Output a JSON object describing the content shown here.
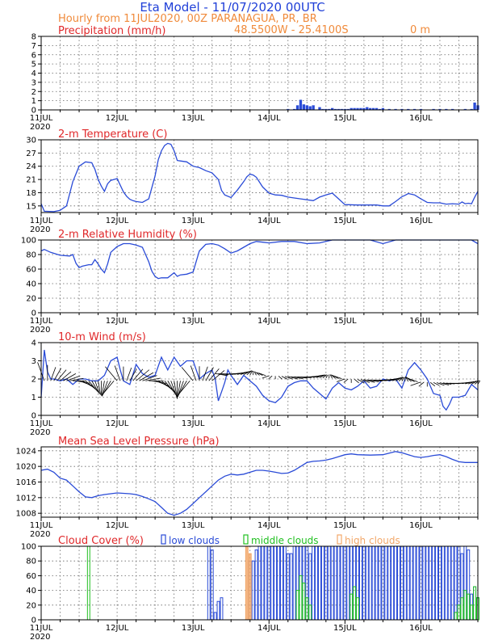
{
  "header": {
    "title": "Eta Model - 11/07/2020 00UTC",
    "subtitle": "Hourly from 11JUL2020, 00Z  PARANAGUA, PR, BR",
    "coords": "48.5500W - 25.4100S",
    "elevation": "0  m"
  },
  "colors": {
    "title_blue": "#1f3fd8",
    "header_orange": "#f08a3a",
    "panel_title_red": "#e0282a",
    "line_blue": "#2a4bd7",
    "green": "#22c022",
    "orange": "#f2a86a"
  },
  "x_axis": {
    "day_labels": [
      "11JUL",
      "12JUL",
      "13JUL",
      "14JUL",
      "15JUL",
      "16JUL"
    ],
    "year_label": "2020"
  },
  "chart_data": [
    {
      "type": "bar",
      "title": "Precipitation (mm/h)",
      "ylim": [
        0,
        8
      ],
      "yticks": [
        0,
        1,
        2,
        3,
        4,
        5,
        6,
        7,
        8
      ],
      "x_unit": "hours since 11JUL2020 00Z",
      "x": [
        78,
        80,
        81,
        82,
        83,
        84,
        85,
        86,
        88,
        89,
        90,
        91,
        92,
        93,
        94,
        95,
        96,
        97,
        98,
        99,
        100,
        101,
        102,
        103,
        104,
        105,
        106,
        107,
        108,
        110,
        112,
        114,
        116,
        118,
        120,
        124,
        126,
        128,
        130,
        134,
        136,
        137,
        138
      ],
      "values": [
        0.1,
        0.1,
        0.5,
        1.1,
        0.6,
        0.5,
        0.4,
        0.5,
        0.3,
        0.1,
        0.1,
        0.1,
        0.2,
        0.1,
        0.1,
        0.1,
        0.1,
        0.1,
        0.2,
        0.2,
        0.2,
        0.2,
        0.2,
        0.3,
        0.2,
        0.2,
        0.2,
        0.1,
        0.2,
        0.1,
        0.1,
        0.1,
        0.1,
        0.1,
        0.1,
        0.1,
        0.1,
        0.1,
        0.1,
        0.1,
        0.1,
        0.8,
        0.5
      ]
    },
    {
      "type": "line",
      "title": "2-m Temperature (C)",
      "ylim": [
        13.5,
        30
      ],
      "yticks": [
        15,
        18,
        21,
        24,
        27,
        30
      ],
      "x_unit": "hours since 11JUL2020 00Z",
      "x": [
        0,
        1,
        4,
        6,
        8,
        10,
        12,
        14,
        16,
        17,
        18,
        19,
        20,
        21,
        22,
        24,
        26,
        27,
        28,
        29,
        30,
        32,
        34,
        36,
        37,
        38,
        39,
        40,
        41,
        42,
        43,
        44,
        46,
        48,
        50,
        52,
        54,
        56,
        57,
        58,
        60,
        62,
        64,
        65,
        66,
        67,
        68,
        70,
        72,
        74,
        76,
        78,
        80,
        82,
        84,
        86,
        88,
        90,
        92,
        96,
        100,
        104,
        106,
        108,
        110,
        112,
        114,
        115,
        116,
        118,
        120,
        122,
        124,
        126,
        128,
        130,
        132,
        133,
        134,
        135,
        136,
        137,
        138
      ],
      "values": [
        15.5,
        13.8,
        13.7,
        14.0,
        15.0,
        20.5,
        24.0,
        25.0,
        24.8,
        23.3,
        21.0,
        19.5,
        18.3,
        20.0,
        20.8,
        21.2,
        18.2,
        17.2,
        16.5,
        16.2,
        16.0,
        15.8,
        16.6,
        21.8,
        25.5,
        27.5,
        28.7,
        29.2,
        29.0,
        27.5,
        25.3,
        25.2,
        25.0,
        24.0,
        23.7,
        23.0,
        22.5,
        21.0,
        18.5,
        17.5,
        16.9,
        18.6,
        20.5,
        21.6,
        22.2,
        22.0,
        21.5,
        19.3,
        17.9,
        17.5,
        17.4,
        17.0,
        16.8,
        16.6,
        16.4,
        16.2,
        17.0,
        17.5,
        17.9,
        15.3,
        15.2,
        15.2,
        15.2,
        15.0,
        15.0,
        16.0,
        17.1,
        17.4,
        17.8,
        17.5,
        16.6,
        15.8,
        15.7,
        15.7,
        15.4,
        15.5,
        15.4,
        15.9,
        15.5,
        15.6,
        15.5,
        17.0,
        18.3
      ]
    },
    {
      "type": "line",
      "title": "2-m Relative Humidity (%)",
      "ylim": [
        0,
        100
      ],
      "yticks": [
        0,
        20,
        40,
        60,
        80,
        100
      ],
      "x_unit": "hours since 11JUL2020 00Z",
      "x": [
        0,
        1,
        3,
        6,
        9,
        10,
        11,
        12,
        13,
        14,
        15,
        16,
        17,
        18,
        19,
        20,
        21,
        22,
        24,
        26,
        28,
        30,
        32,
        34,
        35,
        36,
        37,
        38,
        40,
        42,
        43,
        44,
        46,
        48,
        50,
        52,
        54,
        56,
        58,
        60,
        62,
        64,
        66,
        68,
        70,
        72,
        76,
        80,
        84,
        88,
        90,
        92,
        96,
        100,
        104,
        108,
        112,
        116,
        120,
        124,
        128,
        132,
        136,
        138
      ],
      "values": [
        85,
        87,
        83,
        79,
        78,
        80,
        68,
        62,
        64,
        65,
        66,
        66,
        73,
        67,
        60,
        55,
        67,
        83,
        91,
        95,
        95,
        93,
        90,
        70,
        57,
        50,
        47,
        48,
        48,
        55,
        50,
        52,
        53,
        56,
        85,
        94,
        95,
        93,
        88,
        82,
        85,
        90,
        95,
        98,
        97,
        96,
        98,
        98,
        95,
        96,
        98,
        100,
        100,
        100,
        100,
        95,
        100,
        100,
        100,
        100,
        100,
        100,
        100,
        95
      ]
    },
    {
      "type": "line",
      "title": "10-m Wind (m/s)",
      "ylim": [
        0,
        4
      ],
      "yticks": [
        0,
        1,
        2,
        3,
        4
      ],
      "x_unit": "hours since 11JUL2020 00Z",
      "x": [
        0,
        1,
        2,
        3,
        4,
        6,
        8,
        10,
        12,
        14,
        16,
        18,
        20,
        22,
        24,
        25,
        26,
        28,
        30,
        32,
        34,
        36,
        38,
        40,
        42,
        44,
        46,
        48,
        50,
        52,
        54,
        55,
        56,
        57,
        58,
        59,
        60,
        62,
        64,
        66,
        68,
        70,
        72,
        74,
        76,
        78,
        80,
        82,
        84,
        86,
        88,
        90,
        92,
        94,
        96,
        98,
        100,
        102,
        104,
        106,
        108,
        110,
        112,
        114,
        116,
        118,
        120,
        122,
        124,
        126,
        127,
        128,
        129,
        130,
        132,
        134,
        136,
        138
      ],
      "values": [
        1.0,
        3.6,
        2.4,
        2.0,
        2.0,
        1.9,
        2.0,
        1.7,
        2.0,
        2.0,
        1.9,
        1.9,
        2.2,
        3.0,
        3.2,
        2.5,
        1.9,
        1.7,
        2.8,
        2.3,
        2.1,
        2.2,
        3.2,
        2.5,
        3.2,
        2.7,
        3.0,
        3.0,
        2.0,
        2.3,
        2.5,
        2.0,
        0.8,
        1.3,
        1.8,
        2.5,
        2.2,
        1.7,
        2.2,
        1.9,
        1.6,
        1.1,
        0.8,
        0.7,
        1.0,
        1.6,
        1.8,
        1.9,
        1.9,
        1.5,
        1.2,
        0.9,
        1.5,
        1.8,
        1.5,
        1.4,
        1.6,
        1.9,
        1.5,
        1.6,
        2.0,
        1.9,
        2.0,
        1.5,
        2.5,
        2.9,
        2.5,
        2.0,
        1.2,
        1.1,
        0.5,
        0.3,
        0.6,
        1.0,
        1.0,
        1.1,
        1.7,
        1.4
      ],
      "barbs_note": "wind direction arrows drawn along series",
      "wind_dir_deg": [
        140,
        160,
        180,
        200,
        210,
        220,
        230,
        240,
        250,
        260,
        270,
        280,
        290,
        300,
        310,
        320,
        330,
        340,
        350,
        0,
        10,
        20,
        30,
        40
      ]
    },
    {
      "type": "line",
      "title": "Mean Sea Level Pressure (hPa)",
      "ylim": [
        1007,
        1025
      ],
      "yticks": [
        1008,
        1012,
        1016,
        1020,
        1024
      ],
      "x_unit": "hours since 11JUL2020 00Z",
      "x": [
        0,
        2,
        4,
        6,
        8,
        10,
        12,
        14,
        16,
        18,
        20,
        22,
        24,
        26,
        28,
        30,
        32,
        34,
        36,
        38,
        40,
        42,
        44,
        46,
        48,
        50,
        52,
        54,
        56,
        58,
        60,
        62,
        64,
        66,
        68,
        70,
        72,
        74,
        76,
        78,
        80,
        82,
        84,
        86,
        88,
        90,
        92,
        94,
        96,
        98,
        100,
        104,
        108,
        110,
        112,
        114,
        116,
        118,
        120,
        122,
        124,
        126,
        128,
        130,
        132,
        134,
        136,
        138
      ],
      "values": [
        1019.0,
        1019.3,
        1018.5,
        1017.0,
        1016.5,
        1015.0,
        1013.5,
        1012.2,
        1012.0,
        1012.5,
        1012.8,
        1013.0,
        1013.2,
        1013.1,
        1013.0,
        1012.8,
        1012.3,
        1011.7,
        1011.0,
        1009.5,
        1008.0,
        1007.5,
        1008.0,
        1009.0,
        1010.5,
        1012.0,
        1013.5,
        1015.0,
        1016.5,
        1017.5,
        1018.0,
        1017.8,
        1018.0,
        1018.5,
        1019.0,
        1019.0,
        1018.8,
        1018.5,
        1018.2,
        1018.3,
        1019.0,
        1020.0,
        1021.0,
        1021.3,
        1021.4,
        1021.6,
        1022.0,
        1022.5,
        1023.0,
        1023.2,
        1023.0,
        1022.9,
        1023.0,
        1023.4,
        1023.8,
        1023.5,
        1023.0,
        1022.5,
        1022.3,
        1022.5,
        1022.8,
        1023.0,
        1022.5,
        1021.8,
        1021.2,
        1021.0,
        1021.0,
        1021.0
      ]
    },
    {
      "type": "bar",
      "title": "Cloud Cover (%)",
      "legend": {
        "low": "low clouds",
        "middle": "middle clouds",
        "high": "high clouds"
      },
      "ylim": [
        0,
        100
      ],
      "yticks": [
        0,
        20,
        40,
        60,
        80,
        100
      ],
      "x_unit": "hours since 11JUL2020 00Z",
      "series": [
        {
          "name": "low clouds",
          "x": [
            53,
            54,
            55,
            56,
            57,
            66,
            67,
            68,
            69,
            70,
            71,
            72,
            73,
            74,
            75,
            76,
            77,
            78,
            79,
            80,
            81,
            82,
            83,
            84,
            85,
            86,
            87,
            88,
            89,
            90,
            91,
            92,
            93,
            94,
            95,
            96,
            97,
            98,
            99,
            100,
            101,
            102,
            103,
            104,
            105,
            106,
            107,
            108,
            109,
            110,
            111,
            112,
            113,
            114,
            115,
            116,
            117,
            118,
            119,
            120,
            121,
            122,
            123,
            124,
            125,
            126,
            127,
            128,
            129,
            130,
            131,
            132,
            133,
            134,
            135,
            136,
            137,
            138
          ],
          "values": [
            100,
            95,
            10,
            25,
            30,
            80,
            80,
            95,
            100,
            100,
            100,
            100,
            100,
            100,
            100,
            100,
            100,
            90,
            90,
            100,
            100,
            100,
            100,
            100,
            90,
            100,
            100,
            100,
            100,
            100,
            100,
            100,
            100,
            100,
            100,
            100,
            100,
            100,
            100,
            100,
            100,
            100,
            100,
            100,
            100,
            100,
            100,
            100,
            100,
            100,
            100,
            100,
            100,
            100,
            100,
            100,
            100,
            100,
            100,
            100,
            100,
            100,
            100,
            100,
            100,
            100,
            100,
            100,
            100,
            100,
            100,
            100,
            90,
            100,
            95,
            35,
            45,
            30
          ]
        },
        {
          "name": "middle clouds",
          "x": [
            15,
            81,
            82,
            83,
            84,
            85,
            98,
            99,
            100,
            131,
            132,
            133,
            134,
            135,
            136,
            137,
            138
          ],
          "values": [
            100,
            40,
            60,
            50,
            30,
            20,
            35,
            45,
            30,
            10,
            20,
            30,
            40,
            35,
            20,
            45,
            30
          ]
        },
        {
          "name": "high clouds",
          "x": [
            65,
            66
          ],
          "values": [
            100,
            90
          ]
        }
      ]
    }
  ]
}
